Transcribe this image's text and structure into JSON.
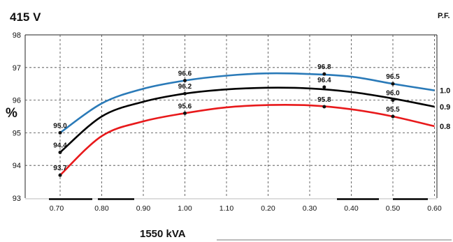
{
  "chart_data": {
    "type": "line",
    "title": "415 V",
    "subtitle": "1550 kVA",
    "ylabel": "%",
    "legend_title": "P.F.",
    "grid": true,
    "ylim": [
      93,
      98
    ],
    "yticks": [
      "93",
      "94",
      "95",
      "96",
      "97",
      "98"
    ],
    "xticks": [
      "0.70",
      "0.80",
      "0.90",
      "1.00",
      "1.10",
      "0.20",
      "0.30",
      "0.40",
      "0.50",
      "0.60"
    ],
    "series": [
      {
        "name": "1.0",
        "color": "#2a7ab8",
        "curve": [
          [
            0,
            95.0
          ],
          [
            1,
            95.9
          ],
          [
            2,
            96.35
          ],
          [
            3,
            96.6
          ],
          [
            4,
            96.75
          ],
          [
            5,
            96.82
          ],
          [
            6,
            96.8
          ],
          [
            7,
            96.72
          ],
          [
            8,
            96.5
          ],
          [
            9,
            96.3
          ]
        ],
        "labeled_points": [
          {
            "x": 0,
            "value": 95.0,
            "label": "95.0"
          },
          {
            "x": 3,
            "value": 96.6,
            "label": "96.6"
          },
          {
            "x": 6.35,
            "value": 96.8,
            "label": "96.8"
          },
          {
            "x": 8,
            "value": 96.5,
            "label": "96.5"
          }
        ]
      },
      {
        "name": "0.9",
        "color": "#000000",
        "curve": [
          [
            0,
            94.4
          ],
          [
            1,
            95.5
          ],
          [
            2,
            95.95
          ],
          [
            3,
            96.2
          ],
          [
            4,
            96.33
          ],
          [
            5,
            96.38
          ],
          [
            6,
            96.36
          ],
          [
            7,
            96.25
          ],
          [
            8,
            96.05
          ],
          [
            9,
            95.8
          ]
        ],
        "labeled_points": [
          {
            "x": 0,
            "value": 94.4,
            "label": "94.4"
          },
          {
            "x": 3,
            "value": 96.2,
            "label": "96.2"
          },
          {
            "x": 6.35,
            "value": 96.4,
            "label": "96.4"
          },
          {
            "x": 8,
            "value": 96.0,
            "label": "96.0"
          }
        ]
      },
      {
        "name": "0.8",
        "color": "#e8191b",
        "curve": [
          [
            0,
            93.7
          ],
          [
            1,
            94.9
          ],
          [
            2,
            95.35
          ],
          [
            3,
            95.6
          ],
          [
            4,
            95.78
          ],
          [
            5,
            95.85
          ],
          [
            6,
            95.84
          ],
          [
            7,
            95.72
          ],
          [
            8,
            95.5
          ],
          [
            9,
            95.2
          ]
        ],
        "labeled_points": [
          {
            "x": 0,
            "value": 93.7,
            "label": "93.7"
          },
          {
            "x": 3,
            "value": 95.6,
            "label": "95.6"
          },
          {
            "x": 6.35,
            "value": 95.8,
            "label": "95.8"
          },
          {
            "x": 8,
            "value": 95.5,
            "label": "95.5"
          }
        ]
      }
    ]
  }
}
